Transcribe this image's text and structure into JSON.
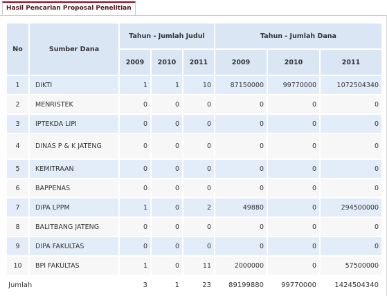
{
  "tab": {
    "label": "Hasil Pencarian Proposal Penelitian"
  },
  "table": {
    "headers": {
      "no": "No",
      "source": "Sumber Dana",
      "group_titles": "Tahun - Jumlah Judul",
      "group_funds": "Tahun - Jumlah Dana",
      "years": [
        "2009",
        "2010",
        "2011"
      ]
    },
    "rows": [
      {
        "no": "1",
        "source": "DIKTI",
        "titles": [
          "1",
          "1",
          "10"
        ],
        "funds": [
          "87150000",
          "99770000",
          "1072504340"
        ]
      },
      {
        "no": "2",
        "source": "MENRISTEK",
        "titles": [
          "0",
          "0",
          "0"
        ],
        "funds": [
          "0",
          "0",
          "0"
        ]
      },
      {
        "no": "3",
        "source": "IPTEKDA LIPI",
        "titles": [
          "0",
          "0",
          "0"
        ],
        "funds": [
          "0",
          "0",
          "0"
        ]
      },
      {
        "no": "4",
        "source": "DINAS P & K JATENG",
        "titles": [
          "0",
          "0",
          "0"
        ],
        "funds": [
          "0",
          "0",
          "0"
        ]
      },
      {
        "no": "5",
        "source": "KEMITRAAN",
        "titles": [
          "0",
          "0",
          "0"
        ],
        "funds": [
          "0",
          "0",
          "0"
        ]
      },
      {
        "no": "6",
        "source": "BAPPENAS",
        "titles": [
          "0",
          "0",
          "0"
        ],
        "funds": [
          "0",
          "0",
          "0"
        ]
      },
      {
        "no": "7",
        "source": "DIPA LPPM",
        "titles": [
          "1",
          "0",
          "2"
        ],
        "funds": [
          "49880",
          "0",
          "294500000"
        ]
      },
      {
        "no": "8",
        "source": "BALITBANG JATENG",
        "titles": [
          "0",
          "0",
          "0"
        ],
        "funds": [
          "0",
          "0",
          "0"
        ]
      },
      {
        "no": "9",
        "source": "DIPA FAKULTAS",
        "titles": [
          "0",
          "0",
          "0"
        ],
        "funds": [
          "0",
          "0",
          "0"
        ]
      },
      {
        "no": "10",
        "source": "BPI FAKULTAS",
        "titles": [
          "1",
          "0",
          "11"
        ],
        "funds": [
          "2000000",
          "0",
          "57500000"
        ]
      }
    ],
    "total": {
      "label": "Jumlah",
      "titles": [
        "3",
        "1",
        "23"
      ],
      "funds": [
        "89199880",
        "99770000",
        "1424504340"
      ]
    }
  }
}
